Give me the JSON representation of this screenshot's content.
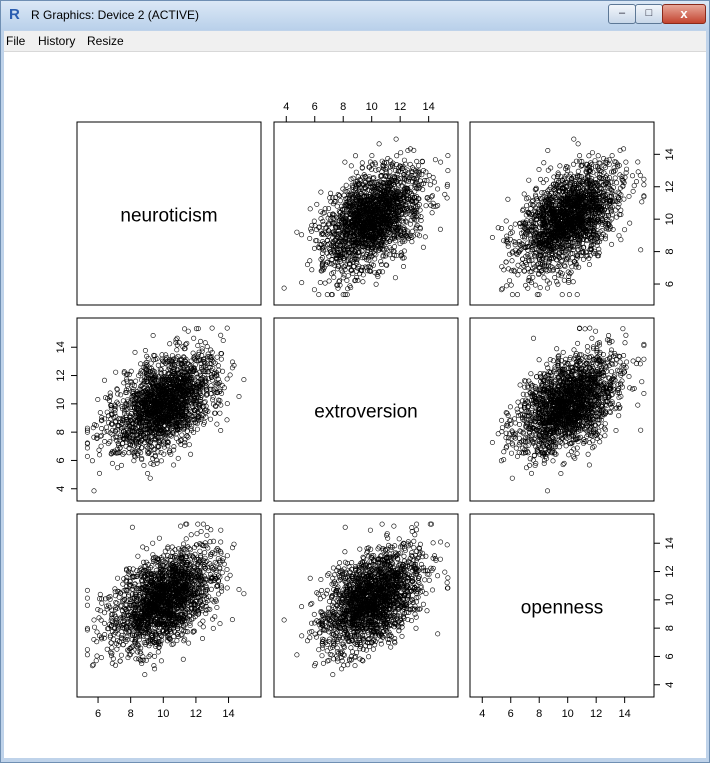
{
  "window": {
    "title": "R Graphics: Device 2 (ACTIVE)",
    "buttons": {
      "minimize": "–",
      "maximize": "□",
      "close": "x"
    }
  },
  "menu": [
    "File",
    "History",
    "Resize"
  ],
  "chart_data": {
    "type": "scatter",
    "variables": [
      "neuroticism",
      "extroversion",
      "openness"
    ],
    "n_points_approx": 2000,
    "axes": {
      "neuroticism": {
        "range": [
          5.2,
          15.5
        ],
        "ticks": [
          6,
          8,
          10,
          12,
          14
        ]
      },
      "extroversion": {
        "range": [
          3.7,
          15.5
        ],
        "ticks": [
          4,
          6,
          8,
          10,
          12,
          14
        ]
      },
      "openness": {
        "range": [
          3.7,
          15.5
        ],
        "ticks": [
          4,
          6,
          8,
          10,
          12,
          14
        ]
      }
    },
    "distribution": {
      "means": {
        "neuroticism": 10,
        "extroversion": 10,
        "openness": 10
      },
      "sd": {
        "neuroticism": 1.6,
        "extroversion": 1.7,
        "openness": 1.7
      },
      "correlations": {
        "neuroticism-extroversion": 0.45,
        "neuroticism-openness": 0.45,
        "extroversion-openness": 0.45
      }
    },
    "panels": [
      {
        "row": "neuroticism",
        "col": "extroversion"
      },
      {
        "row": "neuroticism",
        "col": "openness"
      },
      {
        "row": "extroversion",
        "col": "neuroticism"
      },
      {
        "row": "extroversion",
        "col": "openness"
      },
      {
        "row": "openness",
        "col": "neuroticism"
      },
      {
        "row": "openness",
        "col": "extroversion"
      }
    ],
    "point_style": "open circle",
    "grid": false
  }
}
